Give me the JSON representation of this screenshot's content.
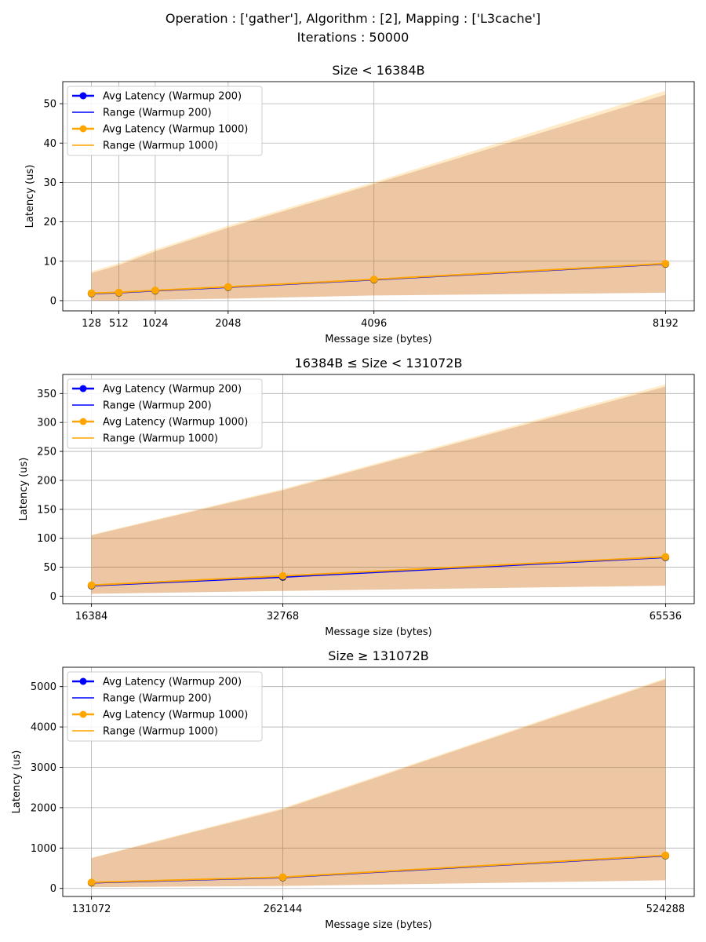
{
  "figure": {
    "suptitle_line1": "Operation :  ['gather'], Algorithm :  [2], Mapping :  ['L3cache']",
    "suptitle_line2": "Iterations :  50000"
  },
  "colors": {
    "warmup200": "#0000ff",
    "warmup1000": "#ffa500",
    "band200": "rgba(127,0,0,0.18)",
    "band1000": "rgba(255,165,0,0.22)",
    "grid": "#b0b0b0"
  },
  "chart_data": [
    {
      "type": "line",
      "title": "Size <  16384B",
      "xlabel": "Message size (bytes)",
      "ylabel": "Latency (us)",
      "x": [
        128,
        512,
        1024,
        2048,
        4096,
        8192
      ],
      "x_ticklabels": [
        "128",
        "512",
        "1024",
        "2048",
        "4096",
        "8192"
      ],
      "yticks": [
        0,
        10,
        20,
        30,
        40,
        50
      ],
      "ylim": [
        -2.6,
        55.6
      ],
      "grid": true,
      "legend_position": "top-left",
      "series": [
        {
          "name": "Avg Latency (Warmup 200)",
          "kind": "avg",
          "values": [
            1.8,
            2.0,
            2.5,
            3.4,
            5.3,
            9.3
          ]
        },
        {
          "name": "Range (Warmup 200)",
          "kind": "range",
          "min": [
            0.0,
            0.0,
            0.2,
            0.5,
            1.3,
            2.0
          ],
          "max": [
            7.0,
            9.0,
            12.5,
            18.5,
            29.6,
            52.3
          ]
        },
        {
          "name": "Avg Latency (Warmup 1000)",
          "kind": "avg",
          "values": [
            1.9,
            2.1,
            2.6,
            3.5,
            5.4,
            9.4
          ]
        },
        {
          "name": "Range (Warmup 1000)",
          "kind": "range",
          "min": [
            0.0,
            0.0,
            0.2,
            0.5,
            1.3,
            2.0
          ],
          "max": [
            7.4,
            9.5,
            13.0,
            19.0,
            30.1,
            53.3
          ]
        }
      ]
    },
    {
      "type": "line",
      "title": "16384B  ≤ Size <  131072B",
      "xlabel": "Message size (bytes)",
      "ylabel": "Latency (us)",
      "x": [
        16384,
        32768,
        65536
      ],
      "x_ticklabels": [
        "16384",
        "32768",
        "65536"
      ],
      "yticks": [
        0,
        50,
        100,
        150,
        200,
        250,
        300,
        350
      ],
      "ylim": [
        -13,
        383
      ],
      "grid": true,
      "legend_position": "top-left",
      "series": [
        {
          "name": "Avg Latency (Warmup 200)",
          "kind": "avg",
          "values": [
            18,
            33,
            67
          ]
        },
        {
          "name": "Range (Warmup 200)",
          "kind": "range",
          "min": [
            4,
            9,
            18
          ],
          "max": [
            105,
            183,
            362
          ]
        },
        {
          "name": "Avg Latency (Warmup 1000)",
          "kind": "avg",
          "values": [
            19,
            35,
            68
          ]
        },
        {
          "name": "Range (Warmup 1000)",
          "kind": "range",
          "min": [
            4,
            9,
            18
          ],
          "max": [
            106,
            185,
            366
          ]
        }
      ]
    },
    {
      "type": "line",
      "title": "Size ≥  131072B",
      "xlabel": "Message size (bytes)",
      "ylabel": "Latency (us)",
      "x": [
        131072,
        262144,
        524288
      ],
      "x_ticklabels": [
        "131072",
        "262144",
        "524288"
      ],
      "yticks": [
        0,
        1000,
        2000,
        3000,
        4000,
        5000
      ],
      "ylim": [
        -200,
        5480
      ],
      "grid": true,
      "legend_position": "top-left",
      "series": [
        {
          "name": "Avg Latency (Warmup 200)",
          "kind": "avg",
          "values": [
            140,
            270,
            810
          ]
        },
        {
          "name": "Range (Warmup 200)",
          "kind": "range",
          "min": [
            30,
            60,
            200
          ],
          "max": [
            750,
            1960,
            5180
          ]
        },
        {
          "name": "Avg Latency (Warmup 1000)",
          "kind": "avg",
          "values": [
            150,
            280,
            820
          ]
        },
        {
          "name": "Range (Warmup 1000)",
          "kind": "range",
          "min": [
            30,
            60,
            200
          ],
          "max": [
            760,
            1990,
            5210
          ]
        }
      ]
    }
  ]
}
